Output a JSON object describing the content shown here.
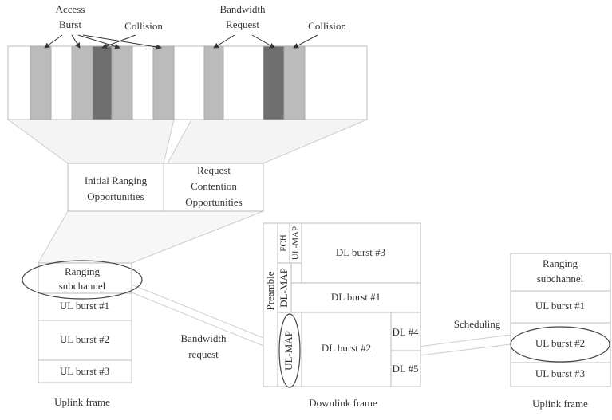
{
  "top": {
    "access_burst": [
      "Access",
      "Burst"
    ],
    "collision_1": "Collision",
    "bandwidth_request": [
      "Bandwidth",
      "Request"
    ],
    "collision_2": "Collision"
  },
  "opportunities": {
    "initial_ranging": [
      "Initial Ranging",
      "Opportunities"
    ],
    "request_contention": [
      "Request",
      "Contention",
      "Opportunities"
    ]
  },
  "uplink_left": {
    "ranging": [
      "Ranging",
      "subchannel"
    ],
    "bursts": [
      "UL burst #1",
      "UL burst #2",
      "UL burst #3"
    ],
    "caption": "Uplink frame"
  },
  "downlink": {
    "preamble": "Preamble",
    "fch": "FCH",
    "dl_map": "DL-MAP",
    "ul_map_top": "UL-MAP",
    "dl_burst_3": "DL burst #3",
    "dl_burst_1": "DL burst #1",
    "dl_burst_2": "DL burst #2",
    "dl_4": "DL #4",
    "dl_5": "DL #5",
    "ul_map_bottom": "UL-MAP",
    "caption": "Downlink frame"
  },
  "uplink_right": {
    "ranging": [
      "Ranging",
      "subchannel"
    ],
    "bursts": [
      "UL burst #1",
      "UL burst #2",
      "UL burst #3"
    ],
    "caption": "Uplink frame"
  },
  "bandwidth_request_label": [
    "Bandwidth",
    "request"
  ],
  "scheduling_label": "Scheduling"
}
